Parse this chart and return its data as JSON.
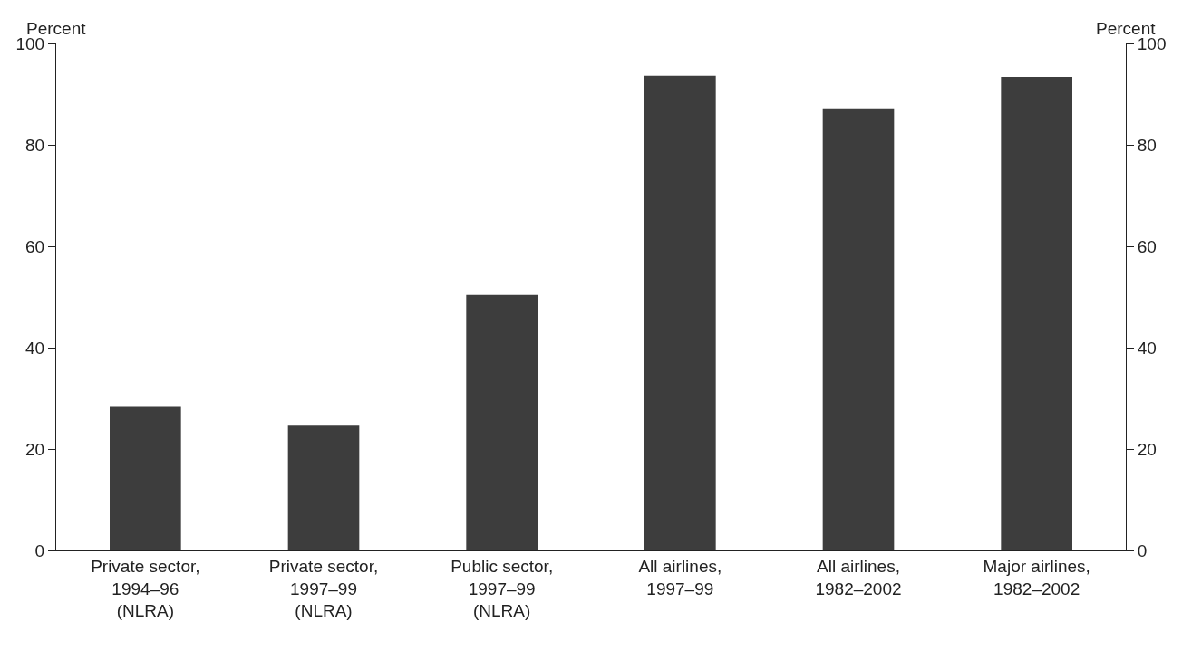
{
  "chart_data": {
    "type": "bar",
    "ylabel": "Percent",
    "y2label": "Percent",
    "categories": [
      "Private sector,\n1994–96\n(NLRA)",
      "Private sector,\n1997–99\n(NLRA)",
      "Public sector,\n1997–99\n(NLRA)",
      "All airlines,\n1997–99",
      "All airlines,\n1982–2002",
      "Major airlines,\n1982–2002"
    ],
    "values": [
      28.3,
      24.6,
      50.4,
      93.6,
      87.2,
      93.4
    ],
    "color": "#3d3d3d",
    "ylim": [
      0,
      100
    ],
    "yticks": [
      0,
      20,
      40,
      60,
      80,
      100
    ],
    "y2lim": [
      0,
      100
    ],
    "y2ticks": [
      0,
      20,
      40,
      60,
      80,
      100
    ],
    "grid": false,
    "legend": false
  }
}
